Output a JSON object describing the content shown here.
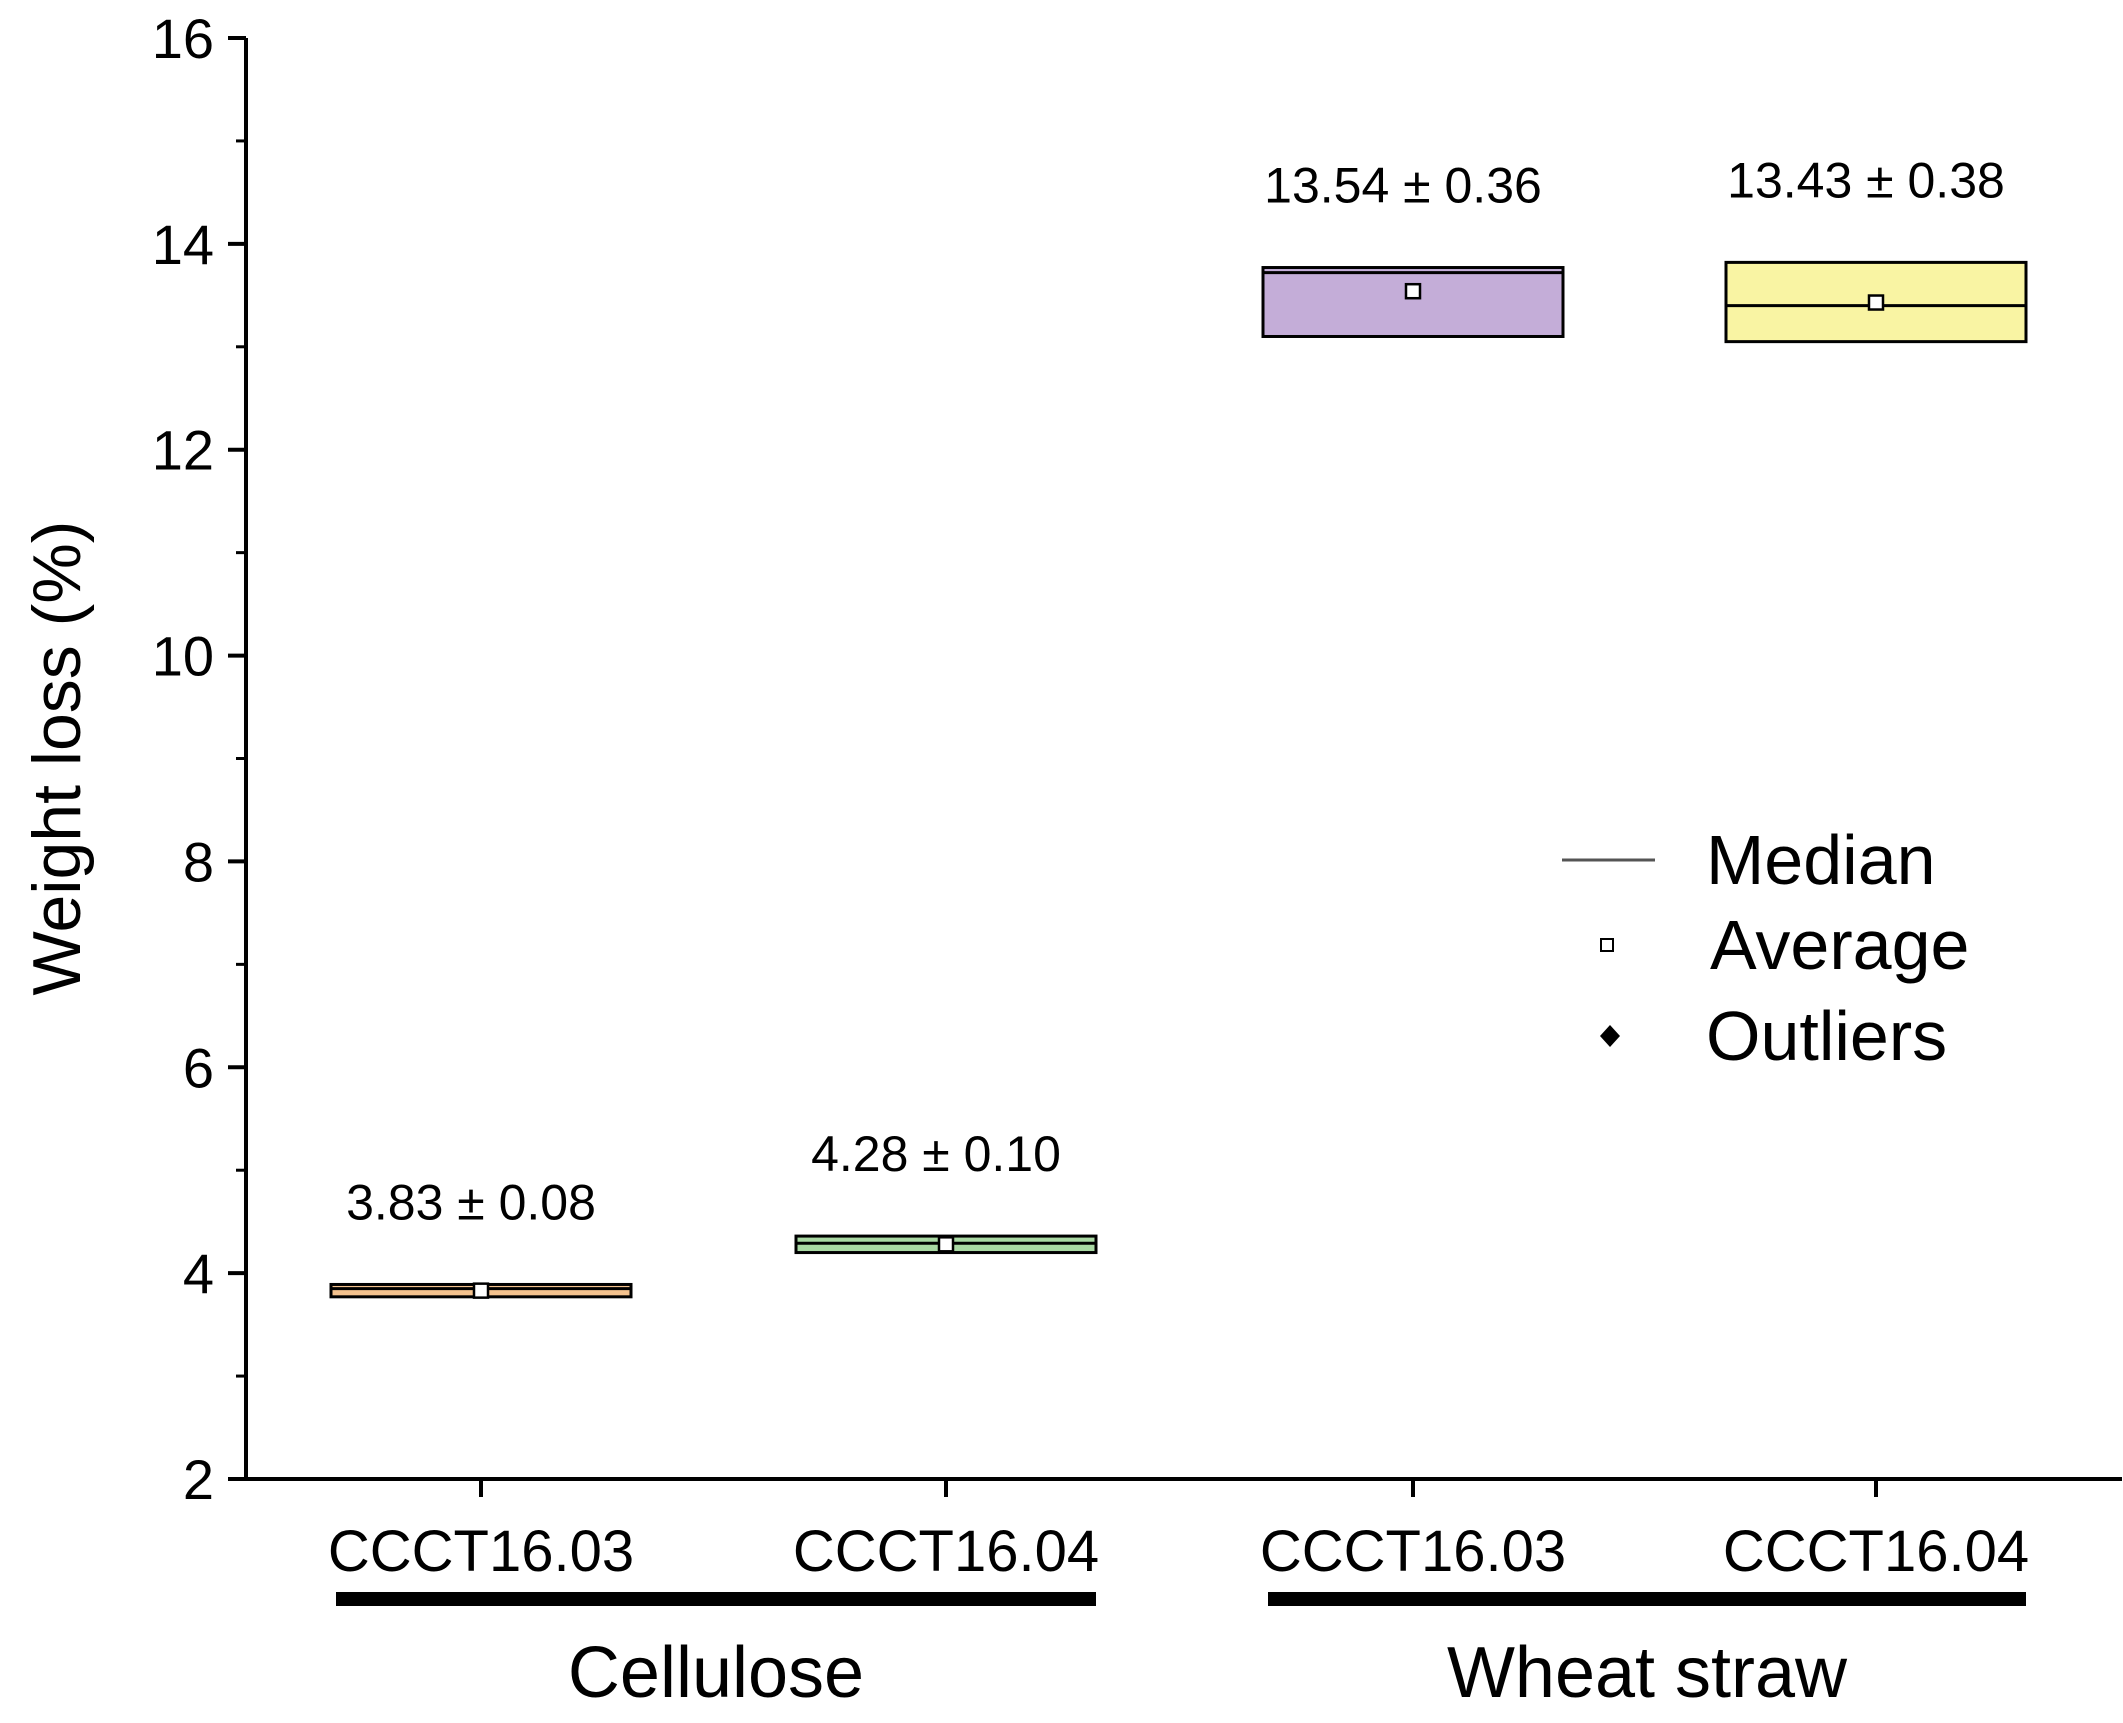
{
  "chart_data": {
    "type": "box",
    "title": "",
    "xlabel": "",
    "ylabel": "Weight loss (%)",
    "ylim": [
      2,
      16
    ],
    "yticks": [
      2,
      4,
      6,
      8,
      10,
      12,
      14,
      16
    ],
    "ytick_labels": [
      "2",
      "4",
      "6",
      "8",
      "10",
      "12",
      "14",
      "16"
    ],
    "minor_ticks": true,
    "grid": false,
    "groups": [
      {
        "label": "Cellulose",
        "members": [
          0,
          1
        ]
      },
      {
        "label": "Wheat straw",
        "members": [
          2,
          3
        ]
      }
    ],
    "boxes": [
      {
        "category": "CCCT16.03",
        "group": "Cellulose",
        "q1": 3.77,
        "q3": 3.89,
        "median": 3.85,
        "mean": 3.83,
        "annotation": "3.83 ± 0.08",
        "color": "#f4c28e"
      },
      {
        "category": "CCCT16.04",
        "group": "Cellulose",
        "q1": 4.2,
        "q3": 4.36,
        "median": 4.29,
        "mean": 4.28,
        "annotation": "4.28 ± 0.10",
        "color": "#a9d8a3"
      },
      {
        "category": "CCCT16.03",
        "group": "Wheat straw",
        "q1": 13.1,
        "q3": 13.77,
        "median": 13.72,
        "mean": 13.54,
        "annotation": "13.54 ± 0.36",
        "color": "#c4add8"
      },
      {
        "category": "CCCT16.04",
        "group": "Wheat straw",
        "q1": 13.05,
        "q3": 13.82,
        "median": 13.4,
        "mean": 13.43,
        "annotation": "13.43 ± 0.38",
        "color": "#f9f4a3"
      }
    ],
    "legend": {
      "position": "center-right",
      "entries": [
        {
          "symbol": "line",
          "label": "Median"
        },
        {
          "symbol": "open-square",
          "label": "Average"
        },
        {
          "symbol": "filled-diamond",
          "label": "Outliers"
        }
      ]
    }
  }
}
